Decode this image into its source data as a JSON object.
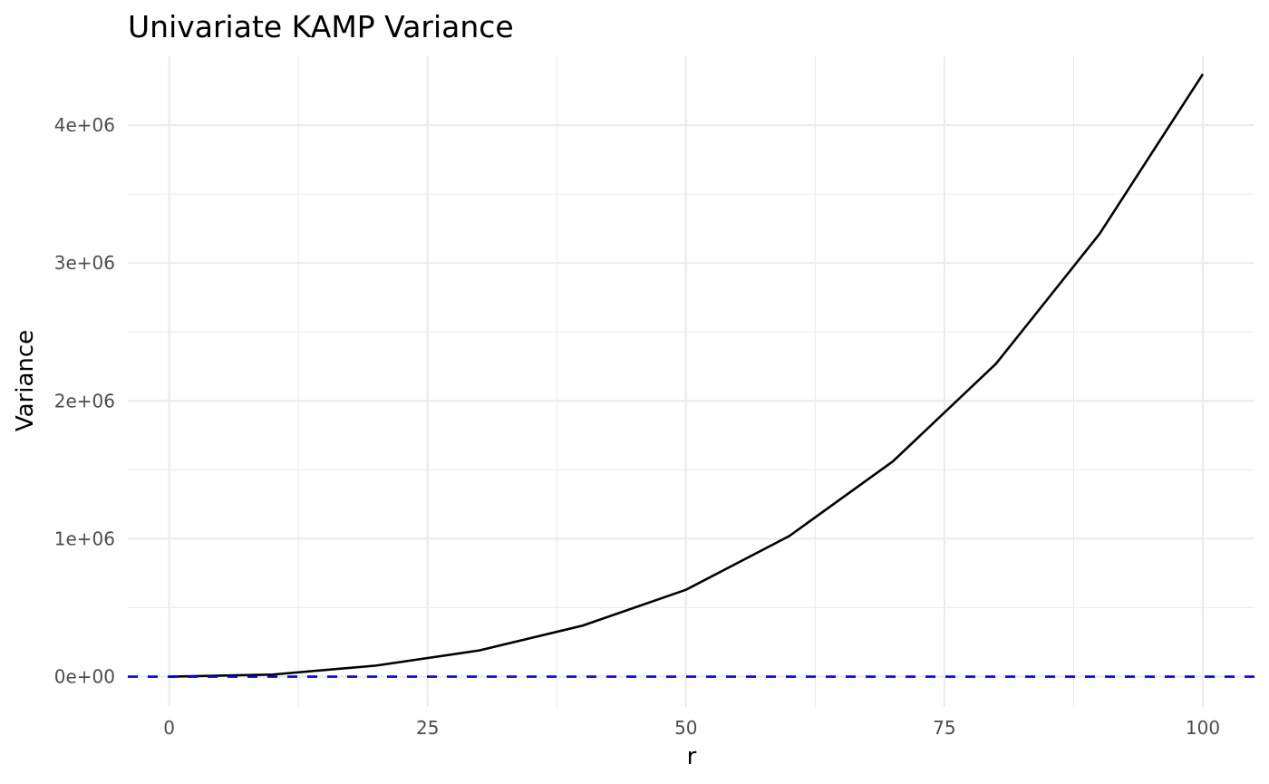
{
  "chart_data": {
    "type": "line",
    "title": "Univariate KAMP Variance",
    "xlabel": "r",
    "ylabel": "Variance",
    "xlim": [
      -4,
      105
    ],
    "ylim": [
      -220000,
      4500000
    ],
    "x_ticks": [
      0,
      25,
      50,
      75,
      100
    ],
    "x_tick_labels": [
      "0",
      "25",
      "50",
      "75",
      "100"
    ],
    "y_ticks": [
      0,
      1000000,
      2000000,
      3000000,
      4000000
    ],
    "y_tick_labels": [
      "0e+00",
      "1e+06",
      "2e+06",
      "3e+06",
      "4e+06"
    ],
    "x_minor_ticks": [
      12.5,
      37.5,
      62.5,
      87.5
    ],
    "y_minor_ticks": [
      500000,
      1500000,
      2500000,
      3500000
    ],
    "grid": true,
    "series": [
      {
        "color": "#000000",
        "style": "solid",
        "x": [
          0,
          10,
          20,
          30,
          40,
          50,
          60,
          70,
          80,
          90,
          100
        ],
        "y": [
          0,
          15000,
          80000,
          190000,
          370000,
          630000,
          1020000,
          1560000,
          2270000,
          3210000,
          4370000
        ]
      },
      {
        "color": "#0000ff",
        "style": "dashed",
        "x": [
          -4,
          105
        ],
        "y": [
          0,
          0
        ]
      }
    ]
  }
}
